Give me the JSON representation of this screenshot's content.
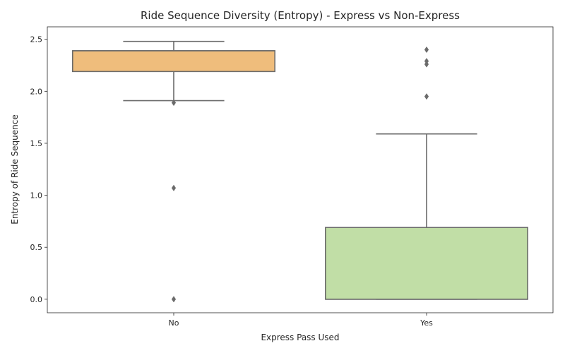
{
  "chart_data": {
    "type": "box",
    "title": "Ride Sequence Diversity (Entropy) - Express vs Non-Express",
    "xlabel": "Express Pass Used",
    "ylabel": "Entropy of Ride Sequence",
    "categories": [
      "No",
      "Yes"
    ],
    "ylim": [
      -0.13,
      2.62
    ],
    "yticks": [
      0.0,
      0.5,
      1.0,
      1.5,
      2.0,
      2.5
    ],
    "ytick_labels": [
      "0.0",
      "0.5",
      "1.0",
      "1.5",
      "2.0",
      "2.5"
    ],
    "grid": false,
    "boxes": [
      {
        "category": "No",
        "whisker_low": 1.91,
        "q1": 2.19,
        "median": 2.39,
        "q3": 2.39,
        "whisker_high": 2.48,
        "outliers": [
          1.89,
          1.07,
          0.0
        ],
        "color": "#efbd7c"
      },
      {
        "category": "Yes",
        "whisker_low": 0.0,
        "q1": 0.0,
        "median": 0.0,
        "q3": 0.69,
        "whisker_high": 1.59,
        "outliers": [
          1.95,
          2.26,
          2.29,
          2.4
        ],
        "color": "#c1dea6"
      }
    ],
    "line_color": "#6b6b6b"
  }
}
